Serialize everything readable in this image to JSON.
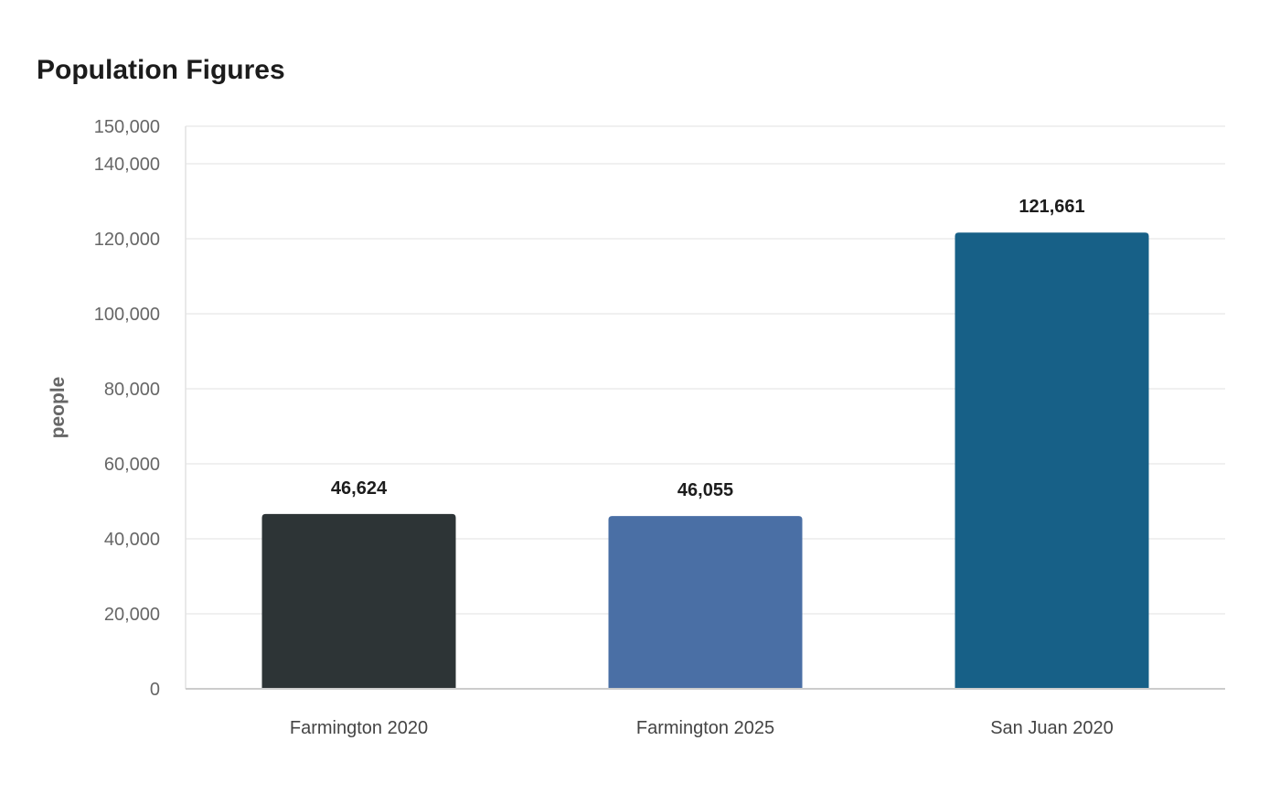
{
  "chart_data": {
    "type": "bar",
    "title": "Population Figures",
    "xlabel": "",
    "ylabel": "people",
    "categories": [
      "Farmington 2020",
      "Farmington 2025",
      "San Juan 2020"
    ],
    "values": [
      46624,
      46055,
      121661
    ],
    "value_labels": [
      "46,624",
      "46,055",
      "121,661"
    ],
    "colors": [
      "#2d3436",
      "#4a6fa5",
      "#176087"
    ],
    "ylim": [
      0,
      150000
    ],
    "yticks": [
      0,
      20000,
      40000,
      60000,
      80000,
      100000,
      120000,
      140000,
      150000
    ],
    "ytick_labels": [
      "0",
      "20,000",
      "40,000",
      "60,000",
      "80,000",
      "100,000",
      "120,000",
      "140,000",
      "150,000"
    ],
    "grid": true,
    "legend": "none"
  }
}
